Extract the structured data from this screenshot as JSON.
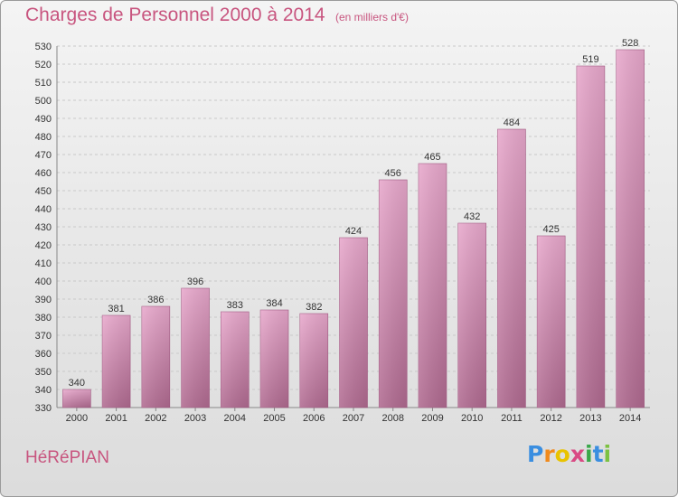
{
  "header": {
    "title": "Charges de Personnel 2000 à 2014",
    "subtitle": "(en milliers d'€)"
  },
  "footer": {
    "commune": "HéRéPIAN",
    "logo": {
      "letters": [
        "P",
        "r",
        "o",
        "x",
        "i",
        "t",
        "i"
      ],
      "colors": [
        "#3a8ee0",
        "#f08a1c",
        "#e9c300",
        "#d94a84",
        "#3aa84a",
        "#3a8ee0",
        "#7cc142"
      ]
    }
  },
  "chart_data": {
    "type": "bar",
    "title": "Charges de Personnel 2000 à 2014",
    "subtitle": "(en milliers d'€)",
    "categories": [
      "2000",
      "2001",
      "2002",
      "2003",
      "2004",
      "2005",
      "2006",
      "2007",
      "2008",
      "2009",
      "2010",
      "2011",
      "2012",
      "2013",
      "2014"
    ],
    "values": [
      340,
      381,
      386,
      396,
      383,
      384,
      382,
      424,
      456,
      465,
      432,
      484,
      425,
      519,
      528
    ],
    "ylim": [
      330,
      530
    ],
    "ytick_step": 10,
    "grid": true,
    "bar_color_top": "#e8a8cc",
    "bar_color_bottom": "#b06a90"
  }
}
